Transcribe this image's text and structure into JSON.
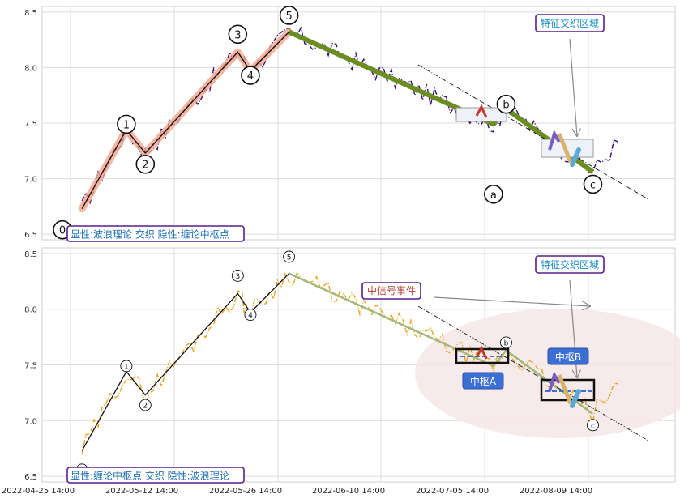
{
  "chart_data": [
    {
      "type": "line",
      "ylim": [
        6.45,
        8.55
      ],
      "yticks": [
        6.5,
        7.0,
        7.5,
        8.0,
        8.5
      ],
      "grid": true,
      "caption": "显性:波浪理论 交织 隐性:缠论中枢点",
      "callout": "特征交织区域",
      "colors": {
        "price": "#3b0a78",
        "impulse_glow": "#f2a58c",
        "correction": "#6b8e23",
        "caption_border": "#5a1e8c",
        "caption_text": "#1f6fb3"
      },
      "wave_labels": [
        {
          "label": "0",
          "x": 0.032,
          "y": 6.54
        },
        {
          "label": "1",
          "x": 0.133,
          "y": 7.49
        },
        {
          "label": "2",
          "x": 0.163,
          "y": 7.13
        },
        {
          "label": "3",
          "x": 0.309,
          "y": 8.3
        },
        {
          "label": "4",
          "x": 0.329,
          "y": 7.93
        },
        {
          "label": "5",
          "x": 0.39,
          "y": 8.47
        },
        {
          "label": "a",
          "x": 0.713,
          "y": 6.86
        },
        {
          "label": "b",
          "x": 0.733,
          "y": 7.67
        },
        {
          "label": "c",
          "x": 0.87,
          "y": 6.95
        }
      ],
      "wave_path": [
        {
          "x": 0.063,
          "y": 6.73
        },
        {
          "x": 0.133,
          "y": 7.44
        },
        {
          "x": 0.163,
          "y": 7.23
        },
        {
          "x": 0.309,
          "y": 8.14
        },
        {
          "x": 0.329,
          "y": 7.97
        },
        {
          "x": 0.39,
          "y": 8.32
        },
        {
          "x": 0.713,
          "y": 7.49
        },
        {
          "x": 0.733,
          "y": 7.63
        },
        {
          "x": 0.87,
          "y": 7.06
        }
      ]
    },
    {
      "type": "line",
      "ylim": [
        6.45,
        8.55
      ],
      "yticks": [
        6.5,
        7.0,
        7.5,
        8.0,
        8.5
      ],
      "grid": true,
      "caption": "显性:缠论中枢点 交织 隐性:波浪理论",
      "callout": "特征交织区域",
      "signal_label": "中信号事件",
      "zone_labels": [
        "中枢A",
        "中枢B"
      ],
      "colors": {
        "price": "#e8a61e",
        "wave_line": "#111111",
        "correction": "#a4b77a",
        "zone_fill": "#f6e6e6",
        "badge": "#3b6fd4"
      },
      "x_ticks": [
        "2022-04-25 14:00",
        "2022-05-12 14:00",
        "2022-05-26 14:00",
        "2022-06-10 14:00",
        "2022-07-05 14:00",
        "2022-08-09 14:00"
      ],
      "wave_labels": [
        {
          "label": "0",
          "x": 0.063,
          "y": 6.56
        },
        {
          "label": "1",
          "x": 0.133,
          "y": 7.49
        },
        {
          "label": "2",
          "x": 0.163,
          "y": 7.14
        },
        {
          "label": "3",
          "x": 0.309,
          "y": 8.3
        },
        {
          "label": "4",
          "x": 0.329,
          "y": 7.95
        },
        {
          "label": "5",
          "x": 0.39,
          "y": 8.47
        },
        {
          "label": "b",
          "x": 0.733,
          "y": 7.7
        },
        {
          "label": "c",
          "x": 0.87,
          "y": 6.96
        }
      ]
    }
  ]
}
